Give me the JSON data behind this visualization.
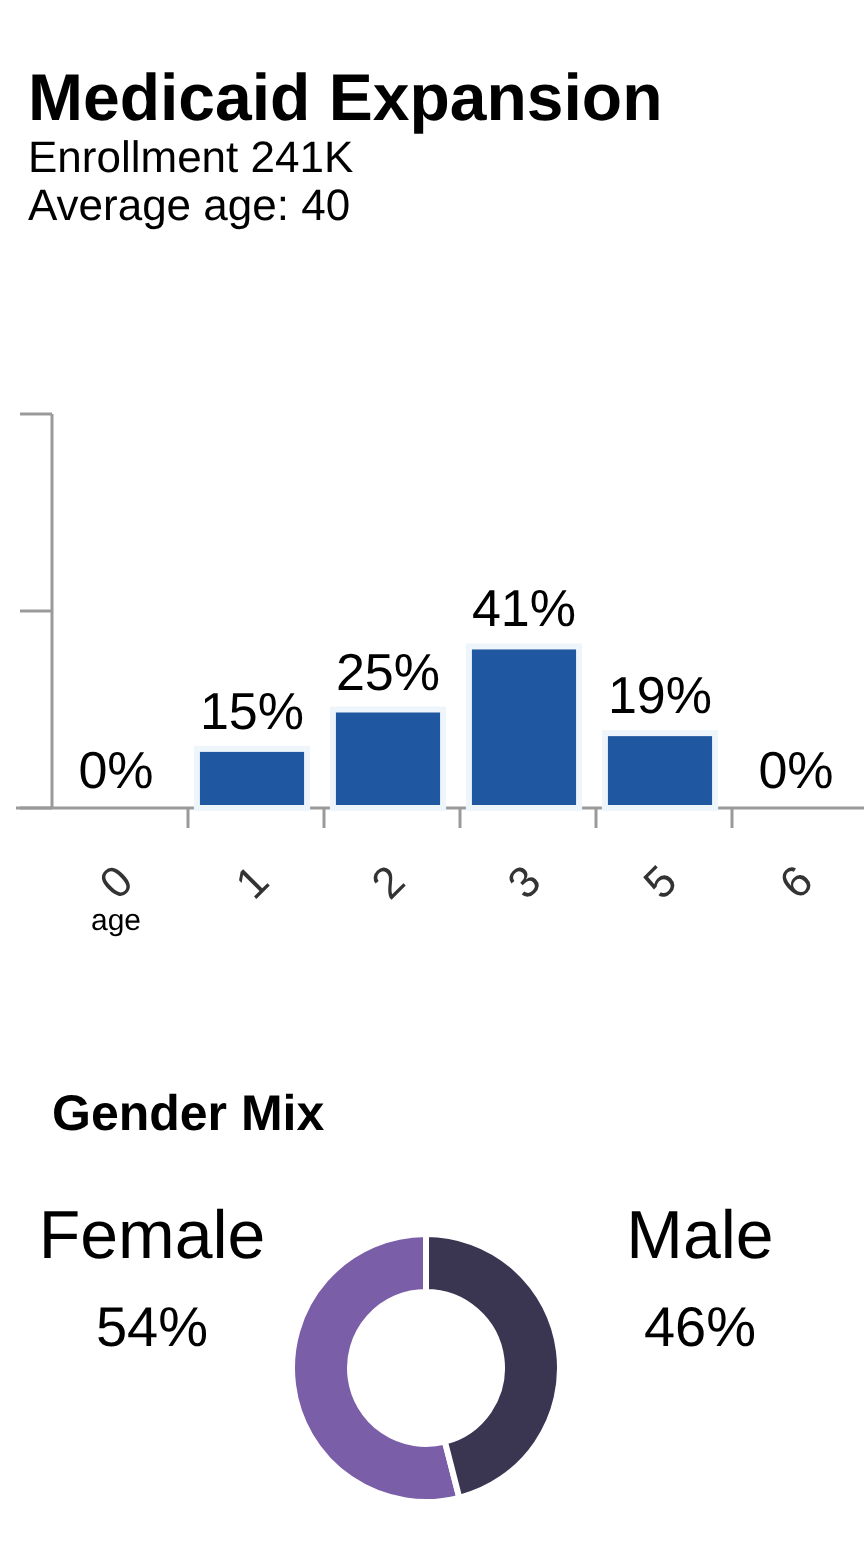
{
  "chart_data": [
    {
      "type": "bar",
      "title": "Medicaid Expansion",
      "subtitle": "Enrollment 241K",
      "annotations": [
        "Average age: 40"
      ],
      "xlabel": "age",
      "categories": [
        "0",
        "1",
        "2",
        "3",
        "5",
        "6"
      ],
      "values": [
        0,
        15,
        25,
        41,
        19,
        0
      ],
      "color": "#1f57a1",
      "value_labels": [
        "0%",
        "15%",
        "25%",
        "41%",
        "19%",
        "0%"
      ],
      "ylim": [
        0,
        100
      ],
      "yticks": [
        {
          "value": 0,
          "label": null
        },
        {
          "value": 50,
          "label": null
        },
        {
          "value": 100,
          "label": null
        }
      ],
      "tick_labels": "x"
    },
    {
      "type": "donut",
      "title": "Gender Mix",
      "categories": [
        "Female",
        "Male"
      ],
      "values": [
        54,
        46
      ],
      "colors": [
        "#7b5ea8",
        "#3a3551"
      ],
      "value_labels": [
        "54%",
        "46%"
      ]
    }
  ]
}
